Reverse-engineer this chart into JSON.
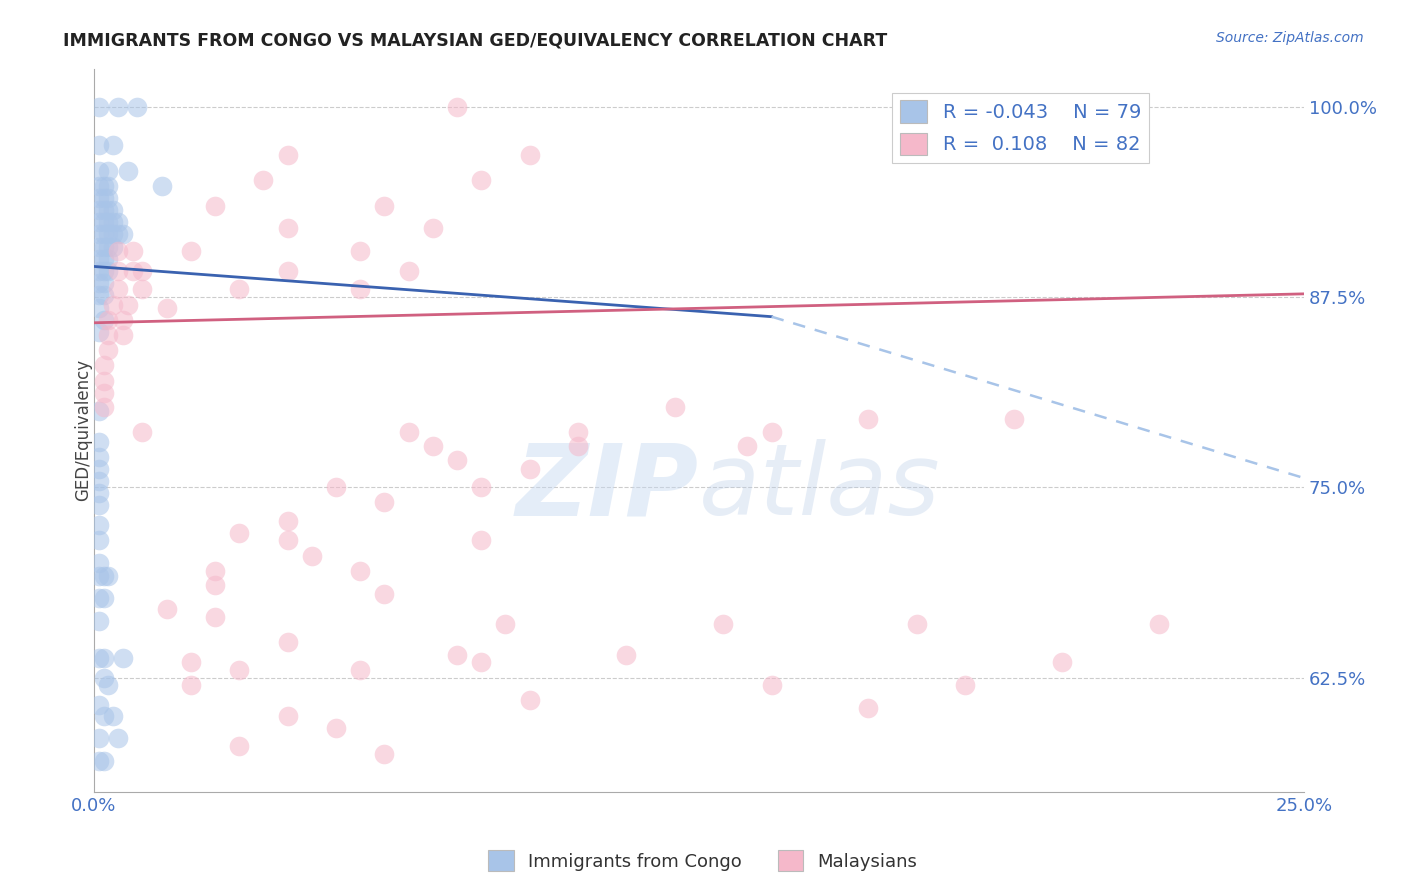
{
  "title": "IMMIGRANTS FROM CONGO VS MALAYSIAN GED/EQUIVALENCY CORRELATION CHART",
  "source": "Source: ZipAtlas.com",
  "ylabel": "GED/Equivalency",
  "legend_blue_r": "-0.043",
  "legend_blue_n": "79",
  "legend_pink_r": "0.108",
  "legend_pink_n": "82",
  "legend_label_blue": "Immigrants from Congo",
  "legend_label_pink": "Malaysians",
  "blue_color": "#a8c4e8",
  "pink_color": "#f5b8ca",
  "blue_line_color": "#3a62b0",
  "pink_line_color": "#d06080",
  "blue_scatter": [
    [
      0.001,
      1.0
    ],
    [
      0.005,
      1.0
    ],
    [
      0.009,
      1.0
    ],
    [
      0.001,
      0.975
    ],
    [
      0.004,
      0.975
    ],
    [
      0.001,
      0.958
    ],
    [
      0.003,
      0.958
    ],
    [
      0.007,
      0.958
    ],
    [
      0.001,
      0.948
    ],
    [
      0.002,
      0.948
    ],
    [
      0.003,
      0.948
    ],
    [
      0.001,
      0.94
    ],
    [
      0.002,
      0.94
    ],
    [
      0.003,
      0.94
    ],
    [
      0.001,
      0.932
    ],
    [
      0.002,
      0.932
    ],
    [
      0.003,
      0.932
    ],
    [
      0.004,
      0.932
    ],
    [
      0.001,
      0.924
    ],
    [
      0.002,
      0.924
    ],
    [
      0.003,
      0.924
    ],
    [
      0.004,
      0.924
    ],
    [
      0.005,
      0.924
    ],
    [
      0.001,
      0.916
    ],
    [
      0.002,
      0.916
    ],
    [
      0.003,
      0.916
    ],
    [
      0.004,
      0.916
    ],
    [
      0.005,
      0.916
    ],
    [
      0.006,
      0.916
    ],
    [
      0.001,
      0.908
    ],
    [
      0.002,
      0.908
    ],
    [
      0.003,
      0.908
    ],
    [
      0.004,
      0.908
    ],
    [
      0.001,
      0.9
    ],
    [
      0.002,
      0.9
    ],
    [
      0.003,
      0.9
    ],
    [
      0.001,
      0.892
    ],
    [
      0.002,
      0.892
    ],
    [
      0.003,
      0.892
    ],
    [
      0.001,
      0.884
    ],
    [
      0.002,
      0.884
    ],
    [
      0.001,
      0.876
    ],
    [
      0.002,
      0.876
    ],
    [
      0.001,
      0.868
    ],
    [
      0.002,
      0.86
    ],
    [
      0.001,
      0.852
    ],
    [
      0.014,
      0.948
    ],
    [
      0.001,
      0.8
    ],
    [
      0.001,
      0.78
    ],
    [
      0.001,
      0.77
    ],
    [
      0.001,
      0.762
    ],
    [
      0.001,
      0.754
    ],
    [
      0.001,
      0.746
    ],
    [
      0.001,
      0.738
    ],
    [
      0.001,
      0.725
    ],
    [
      0.001,
      0.715
    ],
    [
      0.001,
      0.7
    ],
    [
      0.001,
      0.692
    ],
    [
      0.002,
      0.692
    ],
    [
      0.003,
      0.692
    ],
    [
      0.001,
      0.677
    ],
    [
      0.002,
      0.677
    ],
    [
      0.001,
      0.662
    ],
    [
      0.001,
      0.638
    ],
    [
      0.002,
      0.638
    ],
    [
      0.006,
      0.638
    ],
    [
      0.002,
      0.625
    ],
    [
      0.003,
      0.62
    ],
    [
      0.001,
      0.607
    ],
    [
      0.002,
      0.6
    ],
    [
      0.004,
      0.6
    ],
    [
      0.001,
      0.585
    ],
    [
      0.005,
      0.585
    ],
    [
      0.001,
      0.57
    ],
    [
      0.002,
      0.57
    ]
  ],
  "pink_scatter": [
    [
      0.075,
      1.0
    ],
    [
      0.04,
      0.968
    ],
    [
      0.09,
      0.968
    ],
    [
      0.035,
      0.952
    ],
    [
      0.08,
      0.952
    ],
    [
      0.025,
      0.935
    ],
    [
      0.06,
      0.935
    ],
    [
      0.04,
      0.92
    ],
    [
      0.07,
      0.92
    ],
    [
      0.02,
      0.905
    ],
    [
      0.055,
      0.905
    ],
    [
      0.01,
      0.892
    ],
    [
      0.04,
      0.892
    ],
    [
      0.065,
      0.892
    ],
    [
      0.03,
      0.88
    ],
    [
      0.055,
      0.88
    ],
    [
      0.015,
      0.868
    ],
    [
      0.005,
      0.905
    ],
    [
      0.008,
      0.905
    ],
    [
      0.005,
      0.892
    ],
    [
      0.008,
      0.892
    ],
    [
      0.005,
      0.88
    ],
    [
      0.01,
      0.88
    ],
    [
      0.004,
      0.87
    ],
    [
      0.007,
      0.87
    ],
    [
      0.003,
      0.86
    ],
    [
      0.006,
      0.86
    ],
    [
      0.003,
      0.85
    ],
    [
      0.006,
      0.85
    ],
    [
      0.003,
      0.84
    ],
    [
      0.002,
      0.83
    ],
    [
      0.002,
      0.82
    ],
    [
      0.002,
      0.812
    ],
    [
      0.002,
      0.803
    ],
    [
      0.12,
      0.803
    ],
    [
      0.16,
      0.795
    ],
    [
      0.19,
      0.795
    ],
    [
      0.01,
      0.786
    ],
    [
      0.065,
      0.786
    ],
    [
      0.1,
      0.786
    ],
    [
      0.14,
      0.786
    ],
    [
      0.07,
      0.777
    ],
    [
      0.1,
      0.777
    ],
    [
      0.135,
      0.777
    ],
    [
      0.075,
      0.768
    ],
    [
      0.09,
      0.762
    ],
    [
      0.05,
      0.75
    ],
    [
      0.08,
      0.75
    ],
    [
      0.06,
      0.74
    ],
    [
      0.04,
      0.728
    ],
    [
      0.03,
      0.72
    ],
    [
      0.04,
      0.715
    ],
    [
      0.08,
      0.715
    ],
    [
      0.045,
      0.705
    ],
    [
      0.025,
      0.695
    ],
    [
      0.055,
      0.695
    ],
    [
      0.025,
      0.686
    ],
    [
      0.06,
      0.68
    ],
    [
      0.015,
      0.67
    ],
    [
      0.025,
      0.665
    ],
    [
      0.085,
      0.66
    ],
    [
      0.13,
      0.66
    ],
    [
      0.17,
      0.66
    ],
    [
      0.22,
      0.66
    ],
    [
      0.04,
      0.648
    ],
    [
      0.075,
      0.64
    ],
    [
      0.03,
      0.63
    ],
    [
      0.055,
      0.63
    ],
    [
      0.02,
      0.62
    ],
    [
      0.18,
      0.62
    ],
    [
      0.09,
      0.61
    ],
    [
      0.16,
      0.605
    ],
    [
      0.04,
      0.6
    ],
    [
      0.05,
      0.592
    ],
    [
      0.03,
      0.58
    ],
    [
      0.06,
      0.575
    ],
    [
      0.02,
      0.635
    ],
    [
      0.08,
      0.635
    ],
    [
      0.2,
      0.635
    ],
    [
      0.11,
      0.64
    ],
    [
      0.14,
      0.62
    ]
  ],
  "blue_solid_line": [
    [
      0.0,
      0.895
    ],
    [
      0.14,
      0.862
    ]
  ],
  "pink_solid_line": [
    [
      0.0,
      0.858
    ],
    [
      0.25,
      0.877
    ]
  ],
  "blue_dash_line": [
    [
      0.14,
      0.862
    ],
    [
      0.25,
      0.756
    ]
  ],
  "xlim": [
    0.0,
    0.25
  ],
  "ylim": [
    0.55,
    1.025
  ],
  "yticks": [
    0.625,
    0.75,
    0.875,
    1.0
  ],
  "ytick_labels": [
    "62.5%",
    "75.0%",
    "87.5%",
    "100.0%"
  ],
  "xticks": [
    0.0,
    0.05,
    0.1,
    0.15,
    0.2,
    0.25
  ],
  "xtick_labels": [
    "0.0%",
    "",
    "",
    "",
    "",
    "25.0%"
  ],
  "watermark_zip": "ZIP",
  "watermark_atlas": "atlas",
  "background_color": "#ffffff",
  "grid_color": "#cccccc",
  "title_color": "#222222",
  "tick_label_color": "#4472c4"
}
